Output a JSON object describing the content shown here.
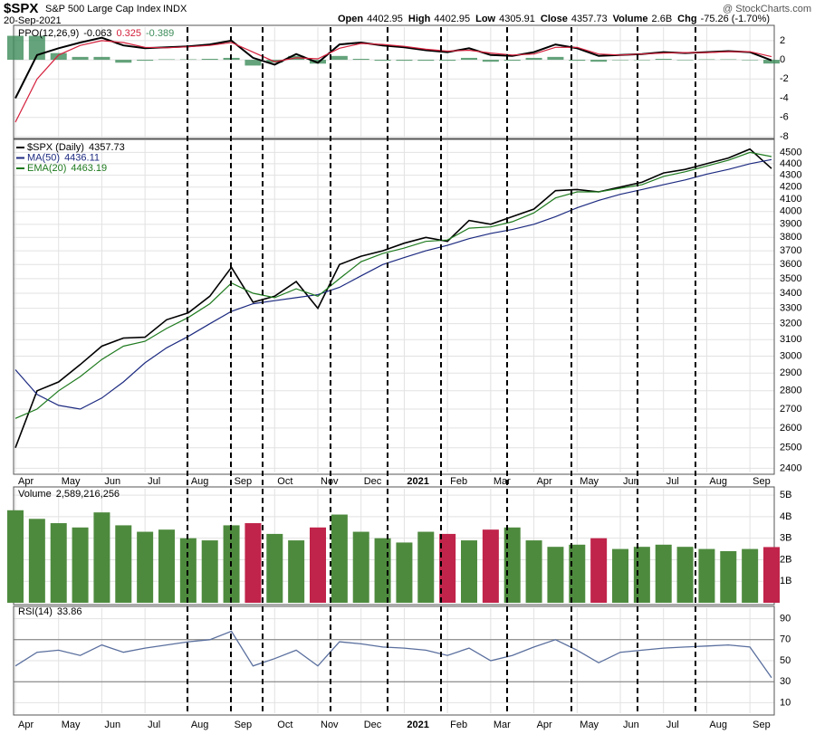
{
  "header": {
    "symbol": "$SPX",
    "name": "S&P 500 Large Cap Index",
    "exchange": "INDX",
    "date": "20-Sep-2021",
    "credit": "@ StockCharts.com",
    "quote": [
      {
        "label": "Open",
        "value": "4402.95"
      },
      {
        "label": "High",
        "value": "4402.95"
      },
      {
        "label": "Low",
        "value": "4305.91"
      },
      {
        "label": "Close",
        "value": "4357.73"
      },
      {
        "label": "Volume",
        "value": "2.6B"
      },
      {
        "label": "Chg",
        "value": "-75.26 (-1.70%)"
      }
    ]
  },
  "chart_data": [
    {
      "type": "line",
      "label": "PPO(12,26,9)",
      "ylim": [
        -8.1,
        3.4
      ],
      "yticks": [
        2,
        0,
        -2,
        -4,
        -6,
        -8
      ],
      "grid": true,
      "series": [
        {
          "color": "#000000",
          "values": [
            -4,
            0.5,
            1.2,
            1.8,
            2.3,
            1.5,
            1.2,
            1.3,
            1.4,
            1.6,
            2.0,
            0.2,
            -0.5,
            0.6,
            -0.3,
            1.6,
            1.8,
            1.5,
            1.3,
            1.0,
            0.8,
            1.2,
            0.5,
            0.4,
            0.8,
            1.6,
            1.2,
            0.4,
            0.5,
            0.6,
            0.8,
            0.7,
            0.8,
            0.9,
            0.8,
            -0.063
          ]
        },
        {
          "color": "#d4203c",
          "values": [
            -6.5,
            -2,
            0.5,
            1.5,
            2.0,
            1.8,
            1.3,
            1.25,
            1.35,
            1.5,
            1.8,
            0.8,
            -0.2,
            0.2,
            0.1,
            1.2,
            1.7,
            1.6,
            1.4,
            1.1,
            0.9,
            1.0,
            0.7,
            0.5,
            0.6,
            1.3,
            1.3,
            0.6,
            0.5,
            0.6,
            0.7,
            0.75,
            0.75,
            0.85,
            0.85,
            0.325
          ]
        }
      ],
      "histogram": {
        "color": "#3d8c5a",
        "values": [
          2.5,
          2.5,
          0.7,
          0.3,
          0.3,
          -0.3,
          -0.1,
          0.05,
          0.05,
          0.1,
          0.2,
          -0.6,
          -0.3,
          0.4,
          -0.4,
          0.4,
          0.1,
          -0.1,
          -0.1,
          -0.1,
          -0.1,
          0.2,
          -0.2,
          -0.1,
          0.2,
          0.3,
          -0.1,
          -0.2,
          0,
          0,
          0.1,
          -0.05,
          0.05,
          0.05,
          -0.05,
          -0.389
        ]
      }
    },
    {
      "type": "line",
      "log_scale": true,
      "ylim": [
        2380,
        4610
      ],
      "yticks": [
        2400,
        2500,
        2600,
        2700,
        2800,
        2900,
        3000,
        3100,
        3200,
        3300,
        3400,
        3500,
        3600,
        3700,
        3800,
        3900,
        4000,
        4100,
        4200,
        4300,
        4400,
        4500
      ],
      "grid": true,
      "categories": [
        "Apr",
        null,
        "May",
        null,
        "Jun",
        null,
        "Jul",
        null,
        "Aug",
        null,
        "Sep",
        null,
        "Oct",
        null,
        "Nov",
        null,
        "Dec",
        null,
        "2021",
        null,
        "Feb",
        null,
        "Mar",
        null,
        "Apr",
        null,
        "May",
        null,
        "Jun",
        null,
        "Jul",
        null,
        "Aug",
        null,
        "Sep",
        null
      ],
      "series": [
        {
          "name": "$SPX (Daily)",
          "color": "#000000",
          "values": [
            2500,
            2800,
            2850,
            2950,
            3060,
            3110,
            3115,
            3225,
            3270,
            3380,
            3580,
            3340,
            3380,
            3480,
            3300,
            3600,
            3660,
            3700,
            3756,
            3800,
            3770,
            3930,
            3900,
            3960,
            4020,
            4170,
            4180,
            4160,
            4200,
            4240,
            4320,
            4350,
            4400,
            4450,
            4530,
            4357.73
          ]
        },
        {
          "name": "MA(50)",
          "color": "#1c2a80",
          "values": [
            2920,
            2780,
            2720,
            2700,
            2760,
            2850,
            2960,
            3050,
            3120,
            3200,
            3280,
            3330,
            3350,
            3370,
            3390,
            3440,
            3520,
            3600,
            3650,
            3700,
            3740,
            3790,
            3830,
            3860,
            3900,
            3960,
            4030,
            4090,
            4140,
            4180,
            4220,
            4260,
            4310,
            4350,
            4400,
            4436.11
          ]
        },
        {
          "name": "EMA(20)",
          "color": "#1e7a1e",
          "values": [
            2650,
            2700,
            2800,
            2880,
            2980,
            3060,
            3090,
            3170,
            3240,
            3330,
            3470,
            3400,
            3370,
            3430,
            3380,
            3500,
            3620,
            3680,
            3720,
            3770,
            3780,
            3870,
            3880,
            3920,
            3990,
            4110,
            4160,
            4160,
            4190,
            4220,
            4290,
            4330,
            4380,
            4430,
            4500,
            4463.19
          ]
        }
      ]
    },
    {
      "type": "bar",
      "label": "Volume",
      "ylim": [
        0,
        5300000000
      ],
      "grid": true,
      "up_color": "#4e8a3e",
      "down_color": "#c0244a",
      "yticks": [
        {
          "value": 1000000000,
          "label": "1B"
        },
        {
          "value": 2000000000,
          "label": "2B"
        },
        {
          "value": 3000000000,
          "label": "3B"
        },
        {
          "value": 4000000000,
          "label": "4B"
        },
        {
          "value": 5000000000,
          "label": "5B"
        }
      ],
      "values": [
        4300000000,
        3900000000,
        3700000000,
        3500000000,
        4200000000,
        3600000000,
        3300000000,
        3400000000,
        3000000000,
        2900000000,
        3600000000,
        3700000000,
        3200000000,
        2900000000,
        3500000000,
        4100000000,
        3300000000,
        3000000000,
        2800000000,
        3300000000,
        3200000000,
        2900000000,
        3400000000,
        3500000000,
        2900000000,
        2600000000,
        2700000000,
        3000000000,
        2500000000,
        2600000000,
        2700000000,
        2600000000,
        2500000000,
        2400000000,
        2500000000,
        2589216256
      ],
      "value_labels": [
        null,
        null,
        null,
        null,
        null,
        null,
        null,
        null,
        null,
        null,
        null,
        null,
        null,
        null,
        null,
        null,
        null,
        null,
        null,
        null,
        null,
        null,
        null,
        null,
        null,
        null,
        null,
        null,
        null,
        null,
        null,
        null,
        null,
        null,
        null,
        "2,589,216,256"
      ]
    },
    {
      "type": "line",
      "label": "RSI(14)",
      "ylim": [
        0,
        100
      ],
      "yticks": [
        10,
        30,
        50,
        70,
        90
      ],
      "grid": true,
      "overbought": 70,
      "oversold": 30,
      "color": "#5a6f9e",
      "values": [
        45,
        58,
        60,
        55,
        65,
        58,
        62,
        65,
        68,
        70,
        78,
        45,
        52,
        60,
        45,
        68,
        66,
        63,
        62,
        60,
        55,
        62,
        50,
        55,
        63,
        70,
        60,
        48,
        58,
        60,
        62,
        63,
        64,
        65,
        63,
        33.86
      ]
    }
  ]
}
